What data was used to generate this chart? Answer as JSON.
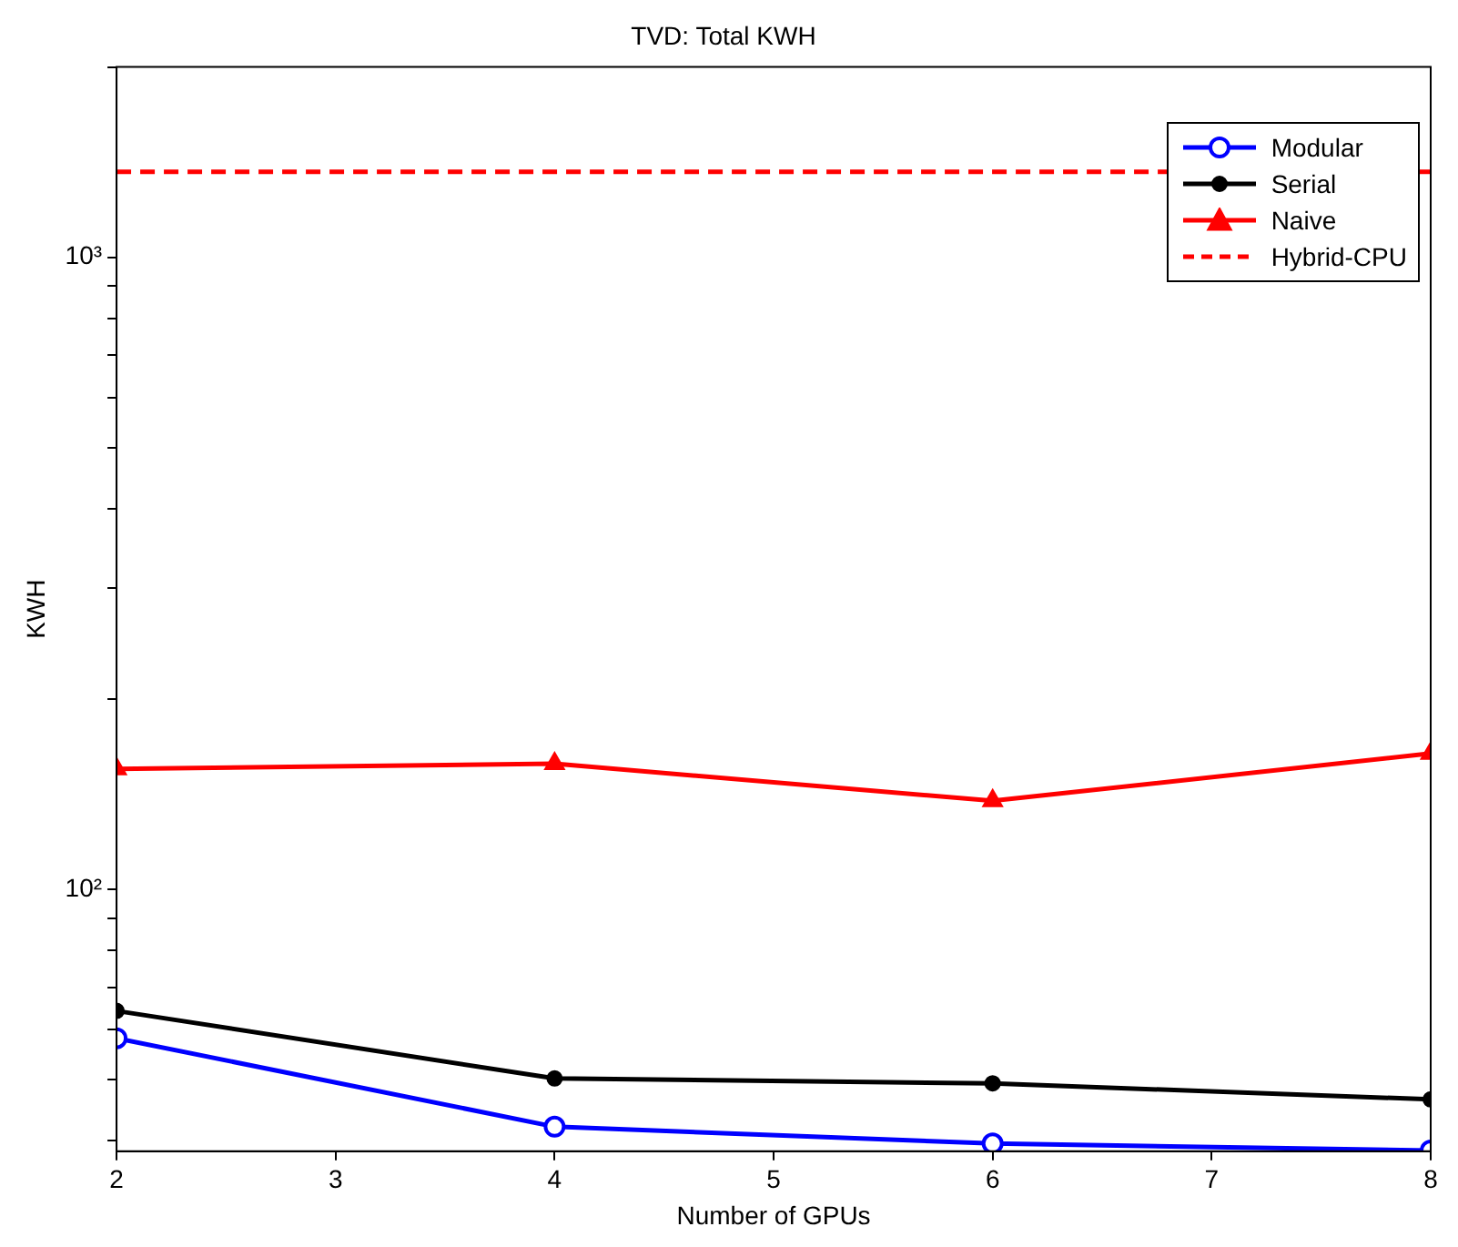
{
  "chart_data": {
    "type": "line",
    "title": "TVD: Total KWH",
    "xlabel": "Number of GPUs",
    "ylabel": "KWH",
    "x": [
      2,
      4,
      6,
      8
    ],
    "series": [
      {
        "name": "Modular",
        "color": "#0000ff",
        "marker": "circle",
        "values": [
          58.1,
          42.1,
          39.6,
          38.6
        ]
      },
      {
        "name": "Serial",
        "color": "#000000",
        "marker": "circle",
        "values": [
          64.2,
          50.2,
          49.3,
          46.5
        ]
      },
      {
        "name": "Naive",
        "color": "#ff0000",
        "marker": "triangle",
        "values": [
          155,
          158,
          138,
          164
        ]
      },
      {
        "name": "Hybrid-CPU",
        "color": "#ff0000",
        "marker": "none",
        "line_style": "dashed",
        "x": [
          2,
          8
        ],
        "values": [
          1365,
          1365
        ]
      }
    ],
    "log": "y",
    "xlim": [
      2,
      8
    ],
    "ylim": [
      38.5,
      2000
    ],
    "xticks": [
      2,
      3,
      4,
      5,
      6,
      7,
      8
    ],
    "yticks": [
      {
        "value": 40,
        "label": null
      },
      {
        "value": 50,
        "label": null
      },
      {
        "value": 60,
        "label": null
      },
      {
        "value": 70,
        "label": null
      },
      {
        "value": 80,
        "label": null
      },
      {
        "value": 90,
        "label": null
      },
      {
        "value": 100,
        "label": "10²"
      },
      {
        "value": 200,
        "label": null
      },
      {
        "value": 300,
        "label": null
      },
      {
        "value": 400,
        "label": null
      },
      {
        "value": 500,
        "label": null
      },
      {
        "value": 600,
        "label": null
      },
      {
        "value": 700,
        "label": null
      },
      {
        "value": 800,
        "label": null
      },
      {
        "value": 900,
        "label": null
      },
      {
        "value": 1000,
        "label": "10³"
      },
      {
        "value": 2000,
        "label": null
      }
    ],
    "grid": false,
    "legend": "top right"
  }
}
